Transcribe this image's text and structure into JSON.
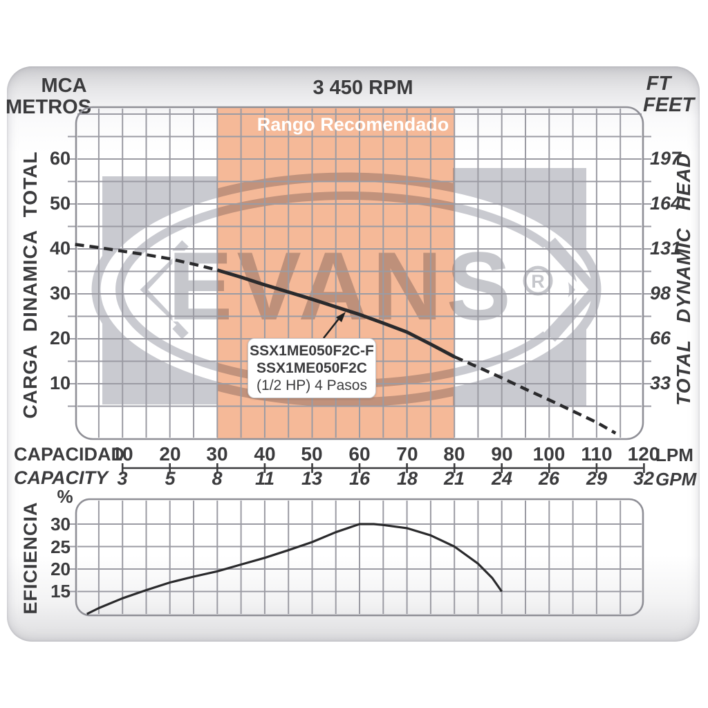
{
  "header": {
    "left_unit_line1": "MCA",
    "left_unit_line2": "METROS",
    "rpm": "3 450 RPM",
    "right_unit_line1": "FT",
    "right_unit_line2": "FEET"
  },
  "main_chart": {
    "recommended_range_label": "Rango Recomendado",
    "left_axis_title": "CARGA DINAMICA TOTAL",
    "right_axis_title": "TOTAL DYNAMIC HEAD",
    "left_ticks": [
      60,
      50,
      40,
      30,
      20,
      10
    ],
    "right_ticks": [
      197,
      164,
      131,
      98,
      66,
      33
    ],
    "pump_label_line1": "SSX1ME050F2C-F",
    "pump_label_line2": "SSX1ME050F2C",
    "pump_label_line3": "(1/2 HP)  4 Pasos"
  },
  "x_axis": {
    "label_row1": "CAPACIDAD",
    "label_row2": "CAPACITY",
    "lpm_ticks": [
      10,
      20,
      30,
      40,
      50,
      60,
      70,
      80,
      90,
      100,
      110,
      120
    ],
    "gpm_ticks": [
      3,
      5,
      8,
      11,
      13,
      16,
      18,
      21,
      24,
      26,
      29,
      32
    ],
    "unit_row1": "LPM",
    "unit_row2": "GPM"
  },
  "efficiency_chart": {
    "axis_title": "EFICIENCIA",
    "percent_symbol": "%",
    "ticks": [
      30,
      25,
      20,
      15
    ]
  },
  "watermark": {
    "text": "EVANS",
    "registered": "®"
  },
  "colors": {
    "recommended_band": "#f5b998",
    "watermark_gray": "#c9cad0",
    "grid_line": "#9b9ba3",
    "plot_border": "#8f8f96",
    "curve": "#2a2a2c",
    "text": "#3b3b3d"
  },
  "chart_data": [
    {
      "type": "line",
      "name": "total-dynamic-head-curve",
      "title": "SSX1ME050F2C-F / SSX1ME050F2C (1/2 HP) 4 Pasos @ 3450 RPM",
      "xlabel": "CAPACIDAD (LPM)",
      "ylabel": "CARGA DINAMICA TOTAL (MCA METROS)",
      "xlim": [
        0,
        120
      ],
      "ylim": [
        0,
        70
      ],
      "grid": true,
      "recommended_range_lpm": [
        30,
        80
      ],
      "solid_segment_lpm": [
        30,
        80
      ],
      "x": [
        0,
        5,
        10,
        15,
        20,
        25,
        30,
        35,
        40,
        45,
        50,
        55,
        60,
        65,
        70,
        75,
        80,
        85,
        90,
        95,
        100,
        105,
        110,
        114
      ],
      "y": [
        41,
        40.3,
        39.5,
        38.7,
        37.8,
        36.6,
        35.3,
        33.7,
        32,
        30.4,
        28.8,
        27.1,
        25.4,
        23.5,
        21.5,
        18.8,
        16,
        13.7,
        11.3,
        8.8,
        6.4,
        3.9,
        1.4,
        -1
      ]
    },
    {
      "type": "line",
      "name": "efficiency-curve",
      "xlabel": "CAPACIDAD (LPM)",
      "ylabel": "EFICIENCIA (%)",
      "xlim": [
        0,
        120
      ],
      "ylim": [
        10,
        35
      ],
      "grid": true,
      "x": [
        2.5,
        5,
        10,
        15,
        20,
        25,
        30,
        35,
        40,
        45,
        50,
        55,
        60,
        63,
        65,
        70,
        75,
        80,
        85,
        88,
        90
      ],
      "y": [
        10,
        11.3,
        13.5,
        15.3,
        17,
        18.3,
        19.5,
        21,
        22.5,
        24.2,
        26,
        28.2,
        30,
        30,
        29.8,
        29.1,
        27.5,
        25,
        21.2,
        18,
        15
      ]
    }
  ]
}
